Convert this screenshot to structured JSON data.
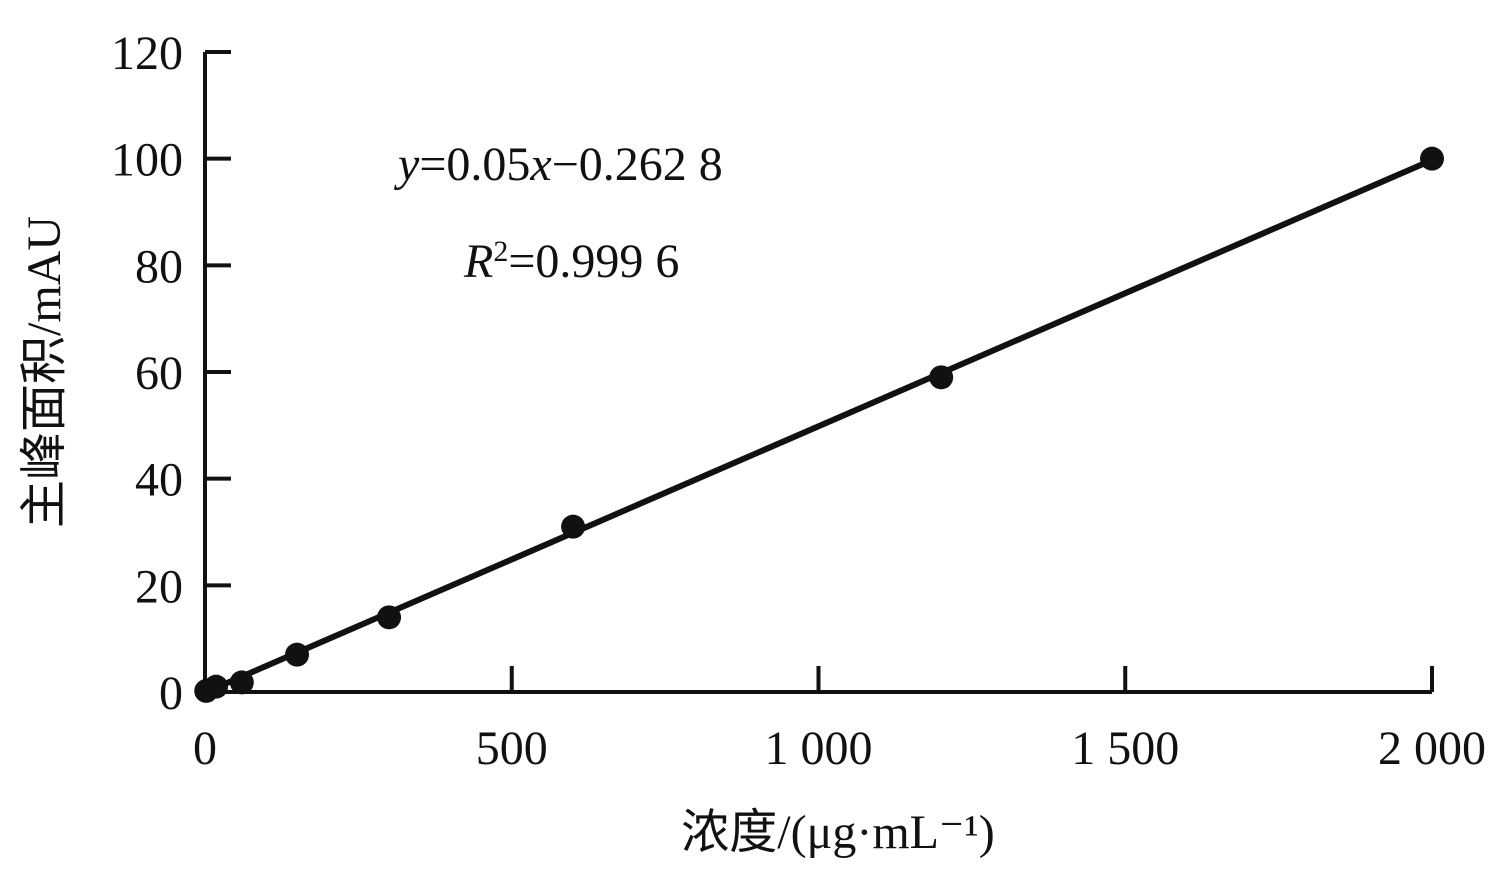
{
  "chart_data": {
    "type": "scatter",
    "title": "",
    "xlabel": "浓度/(μg·mL⁻¹)",
    "ylabel": "主峰面积/mAU",
    "xlim": [
      0,
      2000
    ],
    "ylim": [
      0,
      120
    ],
    "x_ticks": [
      0,
      500,
      1000,
      1500,
      2000
    ],
    "x_tick_labels": [
      "0",
      "500",
      "1 000",
      "1 500",
      "2 000"
    ],
    "y_ticks": [
      0,
      20,
      40,
      60,
      80,
      100,
      120
    ],
    "y_tick_labels": [
      "0",
      "20",
      "40",
      "60",
      "80",
      "100",
      "120"
    ],
    "grid": false,
    "legend": "none",
    "series": [
      {
        "points": [
          {
            "x": 2,
            "y": 0.2
          },
          {
            "x": 18,
            "y": 1.0
          },
          {
            "x": 60,
            "y": 1.8
          },
          {
            "x": 150,
            "y": 7.0
          },
          {
            "x": 300,
            "y": 14.0
          },
          {
            "x": 600,
            "y": 31.0
          },
          {
            "x": 1200,
            "y": 59.0
          },
          {
            "x": 2000,
            "y": 100.0
          }
        ],
        "fit": {
          "slope": 0.05,
          "intercept": -0.2628
        }
      }
    ],
    "annotations": {
      "equation": {
        "y_var": "y",
        "eq": "=0.05",
        "x_var": "x",
        "rest": "−0.262 8"
      },
      "r2": {
        "r": "R",
        "sup": "2",
        "rest": "=0.999 6"
      }
    },
    "colors": {
      "axis": "#111111",
      "marker": "#111111",
      "fit_line": "#111111"
    }
  }
}
